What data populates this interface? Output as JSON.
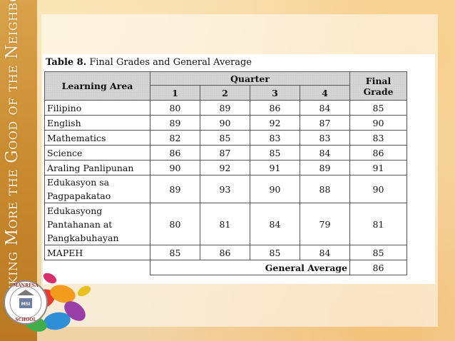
{
  "sidebar": {
    "motto": "Seeking More the Good of the Neighbors"
  },
  "table": {
    "caption_label": "Table 8.",
    "caption_text": " Final Grades and General Average",
    "headers": {
      "learning_area": "Learning Area",
      "quarter": "Quarter",
      "q1": "1",
      "q2": "2",
      "q3": "3",
      "q4": "4",
      "final_grade": "Final Grade"
    },
    "rows": [
      {
        "area": "Filipino",
        "q1": "80",
        "q2": "89",
        "q3": "86",
        "q4": "84",
        "final": "85"
      },
      {
        "area": "English",
        "q1": "89",
        "q2": "90",
        "q3": "92",
        "q4": "87",
        "final": "90"
      },
      {
        "area": "Mathematics",
        "q1": "82",
        "q2": "85",
        "q3": "83",
        "q4": "83",
        "final": "83"
      },
      {
        "area": "Science",
        "q1": "86",
        "q2": "87",
        "q3": "85",
        "q4": "84",
        "final": "86"
      },
      {
        "area": "Araling Panlipunan",
        "q1": "90",
        "q2": "92",
        "q3": "91",
        "q4": "89",
        "final": "91"
      },
      {
        "area": "Edukasyon sa Pagpapakatao",
        "q1": "89",
        "q2": "93",
        "q3": "90",
        "q4": "88",
        "final": "90"
      },
      {
        "area": "Edukasyong Pantahanan at Pangkabuhayan",
        "q1": "80",
        "q2": "81",
        "q3": "84",
        "q4": "79",
        "final": "81"
      },
      {
        "area": "MAPEH",
        "q1": "85",
        "q2": "86",
        "q3": "85",
        "q4": "84",
        "final": "85"
      }
    ],
    "general_average_label": "General Average",
    "general_average_value": "86"
  },
  "logo": {
    "school_name": "MANRESA SCHOOL",
    "initials": "MSI"
  }
}
